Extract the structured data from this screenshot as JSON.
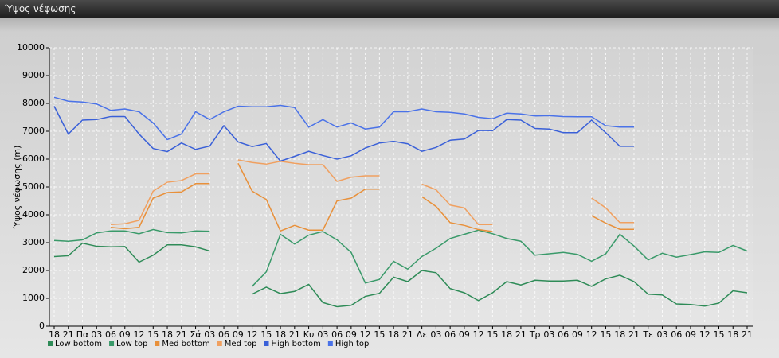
{
  "chart_data": {
    "type": "line",
    "title": "Ύψος νέφωσης",
    "ylabel": "Ύψος νέφωσης (m)",
    "categories": [
      "18",
      "21",
      "Πα",
      "03",
      "06",
      "09",
      "12",
      "15",
      "18",
      "21",
      "Σά",
      "03",
      "06",
      "09",
      "12",
      "15",
      "18",
      "21",
      "Κυ",
      "03",
      "06",
      "09",
      "12",
      "15",
      "18",
      "21",
      "Δε",
      "03",
      "06",
      "09",
      "12",
      "15",
      "18",
      "21",
      "Τρ",
      "03",
      "06",
      "09",
      "12",
      "15",
      "18",
      "21",
      "Τε",
      "03",
      "06",
      "09",
      "12",
      "15",
      "18",
      "21"
    ],
    "ylim": [
      0,
      10000
    ],
    "yticks": [
      0,
      1000,
      2000,
      3000,
      4000,
      5000,
      6000,
      7000,
      8000,
      9000,
      10000
    ],
    "grid": true,
    "legend": "bottom",
    "series": [
      {
        "name": "Low bottom",
        "color": "#2e8b57",
        "values": [
          2500,
          2530,
          2980,
          2870,
          2850,
          2860,
          2300,
          2550,
          2920,
          2920,
          2850,
          2700,
          null,
          null,
          1150,
          1400,
          1170,
          1250,
          1500,
          850,
          700,
          750,
          1070,
          1180,
          1760,
          1600,
          2000,
          1920,
          1350,
          1200,
          920,
          1200,
          1600,
          1480,
          1650,
          1620,
          1620,
          1650,
          1430,
          1700,
          1830,
          1600,
          1150,
          1120,
          800,
          780,
          720,
          830,
          1270,
          1200
        ]
      },
      {
        "name": "Low top",
        "color": "#3a9a6a",
        "values": [
          3080,
          3050,
          3100,
          3350,
          3420,
          3420,
          3320,
          3470,
          3360,
          3350,
          3420,
          3410,
          null,
          null,
          1430,
          1950,
          3300,
          2950,
          3270,
          3400,
          3100,
          2650,
          1550,
          1680,
          2330,
          2050,
          2500,
          2800,
          3150,
          3300,
          3450,
          3320,
          3150,
          3050,
          2550,
          2600,
          2650,
          2580,
          2330,
          2600,
          3300,
          2880,
          2380,
          2620,
          2480,
          2570,
          2670,
          2650,
          2900,
          2700
        ]
      },
      {
        "name": "Med bottom",
        "color": "#e8903a",
        "values": [
          null,
          null,
          null,
          null,
          3550,
          3500,
          3550,
          4600,
          4800,
          4820,
          5120,
          5120,
          null,
          5850,
          4850,
          4550,
          3420,
          3620,
          3450,
          3450,
          4500,
          4600,
          4920,
          4920,
          null,
          null,
          4650,
          4300,
          3720,
          3620,
          3470,
          3400,
          null,
          null,
          null,
          null,
          null,
          null,
          3970,
          3700,
          3480,
          3480,
          null,
          null,
          null,
          null,
          null,
          null,
          null,
          null
        ]
      },
      {
        "name": "Med top",
        "color": "#f0a060",
        "values": [
          null,
          null,
          null,
          null,
          3650,
          3680,
          3800,
          4850,
          5170,
          5230,
          5470,
          5470,
          null,
          5970,
          5880,
          5820,
          5920,
          5850,
          5800,
          5800,
          5200,
          5350,
          5400,
          5400,
          null,
          null,
          5100,
          4900,
          4350,
          4250,
          3650,
          3650,
          null,
          null,
          null,
          null,
          null,
          null,
          4600,
          4250,
          3720,
          3720,
          null,
          null,
          null,
          null,
          null,
          null,
          null,
          null
        ]
      },
      {
        "name": "High bottom",
        "color": "#3a60d8",
        "values": [
          7900,
          6900,
          7400,
          7420,
          7530,
          7530,
          6900,
          6380,
          6270,
          6580,
          6350,
          6470,
          7200,
          6620,
          6450,
          6560,
          5930,
          6100,
          6280,
          6130,
          6000,
          6120,
          6400,
          6580,
          6640,
          6550,
          6280,
          6420,
          6680,
          6720,
          7030,
          7020,
          7420,
          7400,
          7100,
          7080,
          6950,
          6950,
          7400,
          6950,
          6460,
          6460,
          null,
          null,
          null,
          null,
          null,
          null,
          null,
          null
        ]
      },
      {
        "name": "High top",
        "color": "#4a72e8",
        "values": [
          8220,
          8080,
          8050,
          7980,
          7750,
          7800,
          7700,
          7300,
          6700,
          6900,
          7700,
          7420,
          7700,
          7900,
          7880,
          7880,
          7930,
          7850,
          7150,
          7420,
          7150,
          7300,
          7080,
          7150,
          7700,
          7700,
          7800,
          7700,
          7680,
          7620,
          7500,
          7450,
          7650,
          7620,
          7550,
          7560,
          7530,
          7520,
          7520,
          7200,
          7150,
          7150,
          null,
          null,
          null,
          null,
          null,
          null,
          null,
          null
        ]
      }
    ]
  }
}
